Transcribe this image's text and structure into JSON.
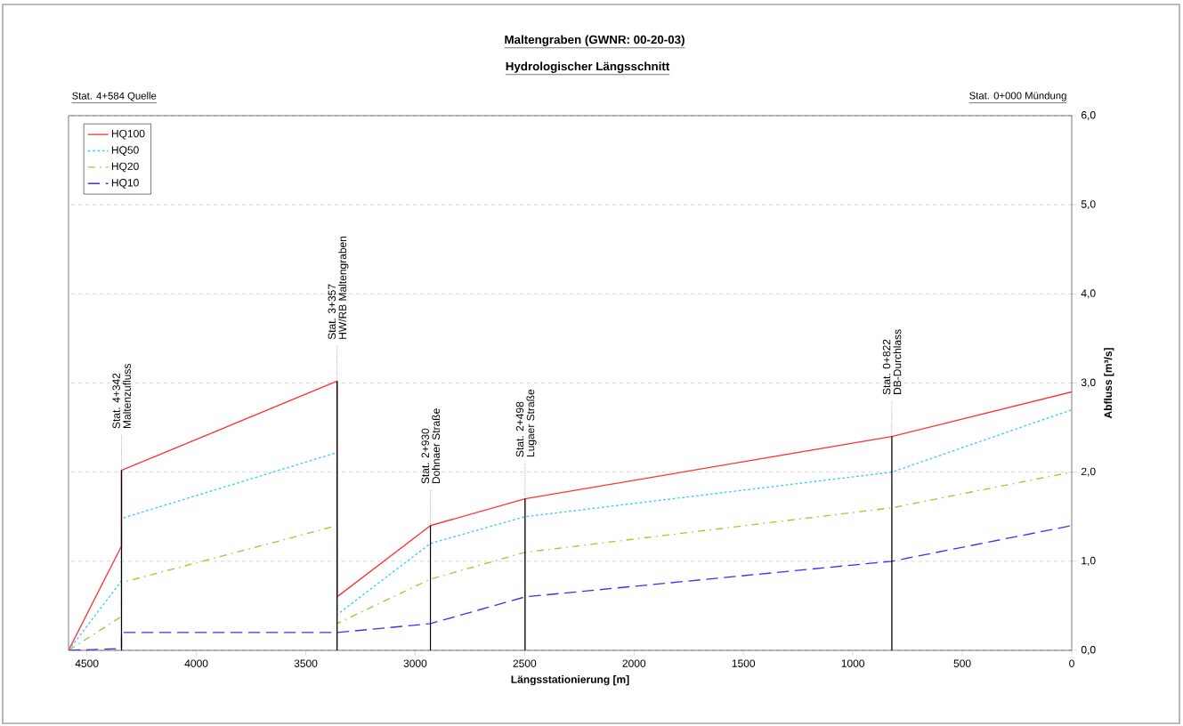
{
  "chart_data": {
    "type": "line",
    "title": "Maltengraben (GWNR: 00-20-03)",
    "subtitle": "Hydrologischer Längsschnitt",
    "xlabel": "Längsstationierung [m]",
    "ylabel": "Abfluss [m³/s]",
    "x": [
      4584,
      4342,
      4342,
      3357,
      3357,
      2930,
      2498,
      822,
      0
    ],
    "series": [
      {
        "name": "HQ100",
        "color": "#ff3333",
        "line_style": "solid",
        "values": [
          0,
          1.17,
          2.02,
          3.02,
          0.6,
          1.4,
          1.7,
          2.4,
          2.9
        ]
      },
      {
        "name": "HQ50",
        "color": "#33ccff",
        "line_style": "dotted",
        "values": [
          0,
          0.78,
          1.48,
          2.22,
          0.4,
          1.2,
          1.5,
          2.0,
          2.7
        ]
      },
      {
        "name": "HQ20",
        "color": "#99cc33",
        "line_style": "dashdot",
        "values": [
          0,
          0.38,
          0.76,
          1.4,
          0.3,
          0.8,
          1.1,
          1.6,
          2.0
        ]
      },
      {
        "name": "HQ10",
        "color": "#3333ff",
        "line_style": "dashed",
        "values": [
          0,
          0.02,
          0.2,
          0.2,
          0.2,
          0.3,
          0.6,
          1.0,
          1.4
        ]
      }
    ],
    "xlim": [
      4584,
      0
    ],
    "ylim": [
      0,
      6
    ],
    "xticks": [
      4500,
      4000,
      3500,
      3000,
      2500,
      2000,
      1500,
      1000,
      500,
      0
    ],
    "yticks": [
      {
        "value": 0,
        "label": "0,0"
      },
      {
        "value": 1,
        "label": "1,0"
      },
      {
        "value": 2,
        "label": "2,0"
      },
      {
        "value": 3,
        "label": "3,0"
      },
      {
        "value": 4,
        "label": "4,0"
      },
      {
        "value": 5,
        "label": "5,0"
      },
      {
        "value": 6,
        "label": "6,0"
      }
    ],
    "ref_lines": [
      {
        "axis": "x",
        "value": 4342,
        "label": "Stat. 4+342",
        "color": "#000000"
      },
      {
        "axis": "x",
        "value": 3357,
        "label": "Stat. 3+357",
        "color": "#000000"
      },
      {
        "axis": "x",
        "value": 2930,
        "label": "Stat. 2+930",
        "color": "#000000"
      },
      {
        "axis": "x",
        "value": 2498,
        "label": "Stat. 2+498",
        "color": "#000000"
      },
      {
        "axis": "x",
        "value": 822,
        "label": "Stat. 0+822",
        "color": "#000000"
      }
    ],
    "annotations": [
      "Stat. 4+584 Quelle",
      "Stat. 0+000 Mündung",
      {
        "text": "Maltenzufluss",
        "x": 4342,
        "y": 2.02
      },
      {
        "text": "HW/RB Maltengraben",
        "x": 3357,
        "y": 3.02
      },
      {
        "text": "Dohnaer Straße",
        "x": 2930,
        "y": 1.4
      },
      {
        "text": "Lugaer Straße",
        "x": 2498,
        "y": 1.7
      },
      {
        "text": "DB-Durchlass",
        "x": 822,
        "y": 2.4
      }
    ],
    "grid": "y",
    "legend": "top left",
    "marker": "none"
  }
}
